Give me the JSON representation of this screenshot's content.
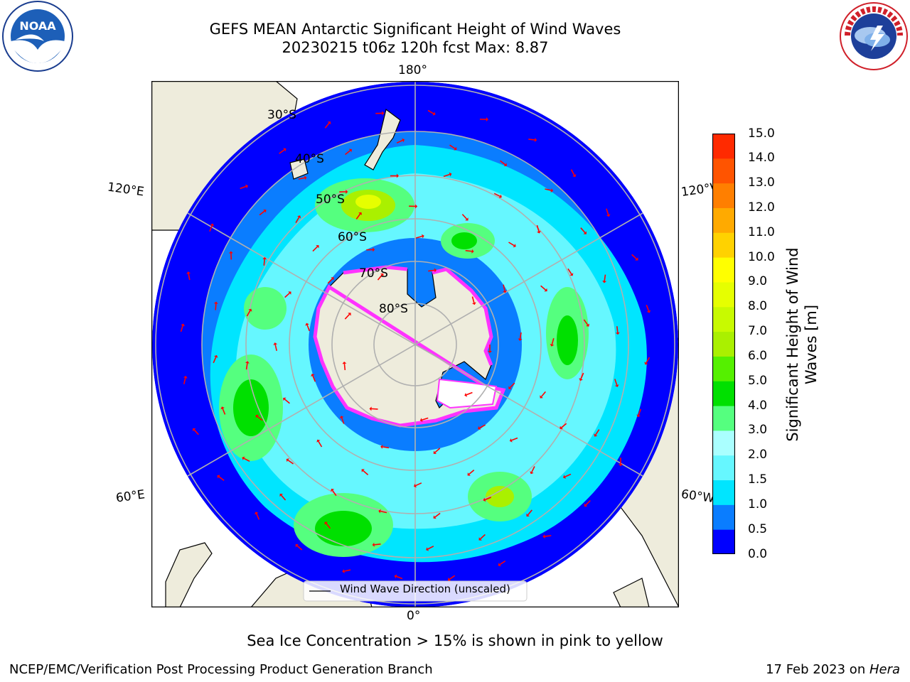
{
  "title_line1": "GEFS MEAN Antarctic Significant Height of Wind Waves",
  "title_line2": "20230215 t06z 120h fcst   Max: 8.87",
  "logos": {
    "left": "NOAA",
    "right": "NATIONAL WEATHER SERVICE"
  },
  "map": {
    "longitude_labels": {
      "top": "180°",
      "bottom": "0°",
      "left_upper": "120°E",
      "left_lower": "60°E",
      "right_upper": "120°W",
      "right_lower": "60°W"
    },
    "latitude_labels": [
      "30°S",
      "40°S",
      "50°S",
      "60°S",
      "70°S",
      "80°S"
    ],
    "legend": "Wind Wave Direction (unscaled)",
    "arrow_color": "#ff0000",
    "land_color": "#eeecdc",
    "ice_colors": [
      "#ff33ff",
      "#ffff66"
    ]
  },
  "colorbar": {
    "label": "Significant Height of Wind Waves [m]",
    "ticks": [
      "15.0",
      "14.0",
      "13.0",
      "12.0",
      "11.0",
      "10.0",
      "9.0",
      "8.0",
      "7.0",
      "6.0",
      "5.0",
      "4.0",
      "3.0",
      "2.0",
      "1.5",
      "1.0",
      "0.5",
      "0.0"
    ],
    "colors_bottom_to_top": [
      "#0000ff",
      "#0a7dff",
      "#00e5ff",
      "#66f7ff",
      "#aaffff",
      "#55ff7f",
      "#00e000",
      "#55f000",
      "#aaf000",
      "#c8fa00",
      "#e6ff00",
      "#ffff00",
      "#ffd200",
      "#ffaa00",
      "#ff7f00",
      "#ff5400",
      "#ff2a00"
    ]
  },
  "caption": "Sea Ice Concentration > 15% is shown in pink to yellow",
  "footer_left": "NCEP/EMC/Verification Post Processing Product Generation Branch",
  "footer_right_date": "17 Feb 2023 on ",
  "footer_right_host": "Hera"
}
